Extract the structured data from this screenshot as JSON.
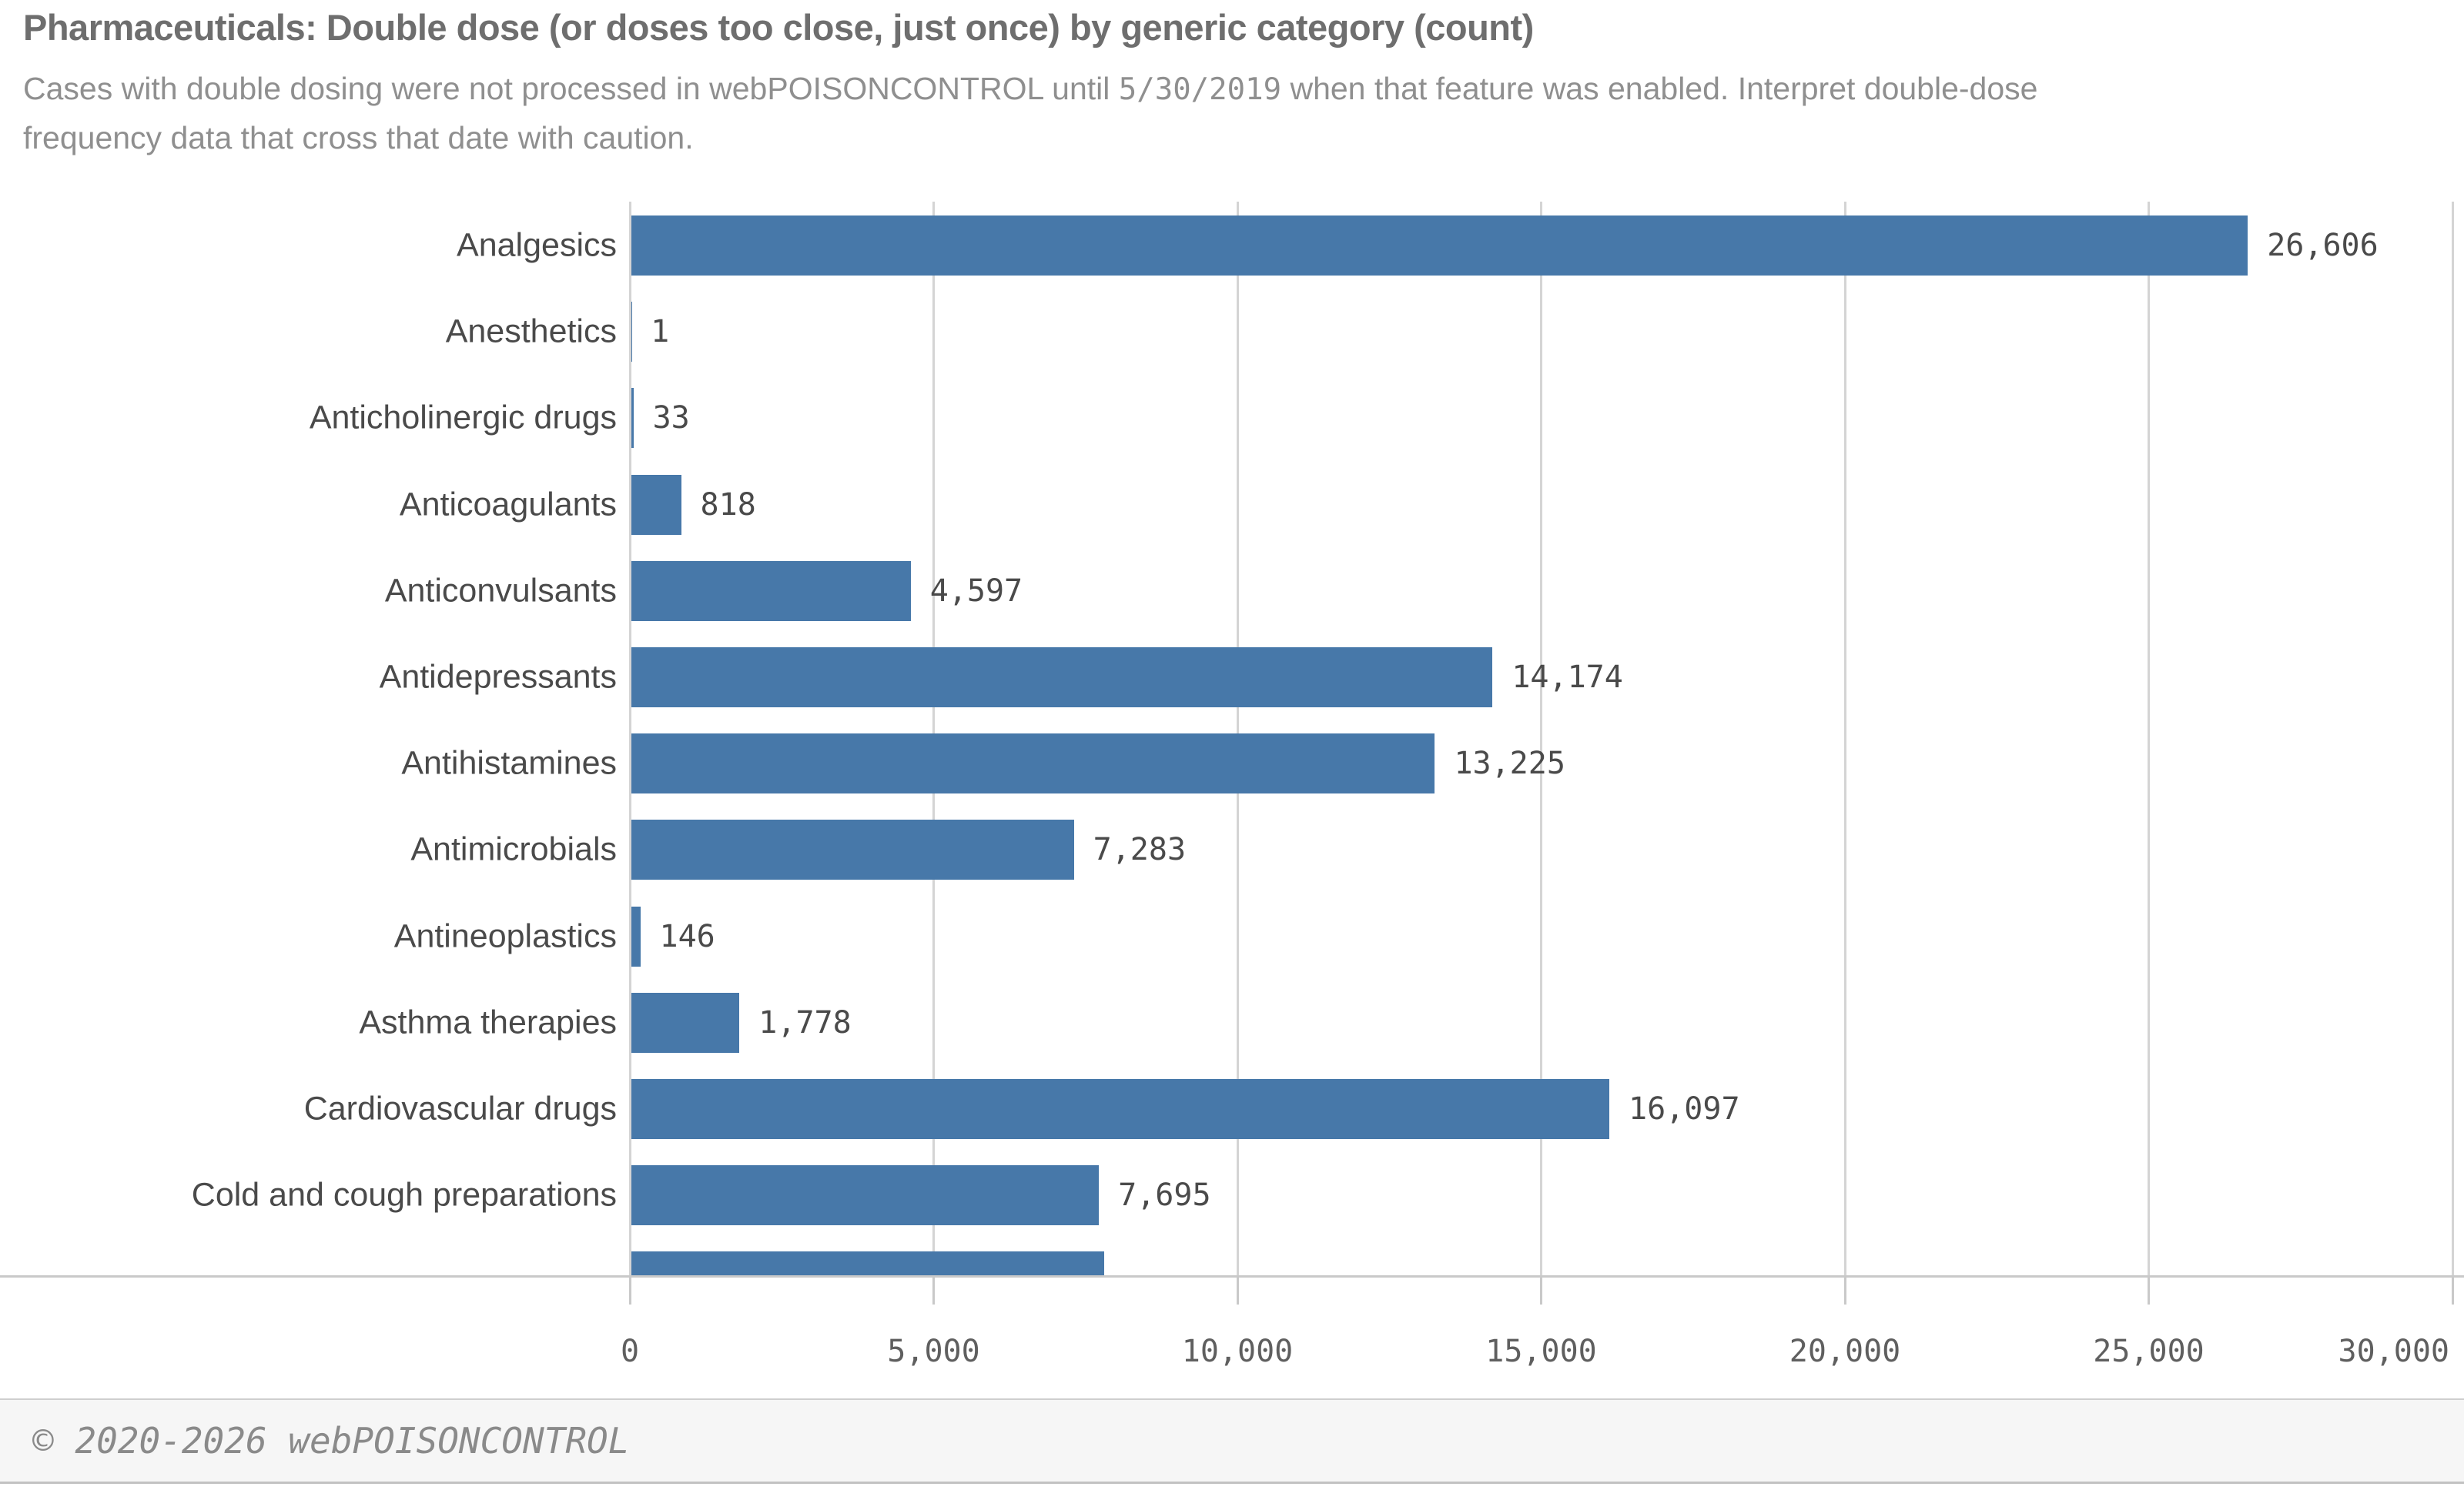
{
  "header": {
    "title": "Pharmaceuticals: Double dose (or doses too close, just once) by generic category (count)",
    "subtitle_line1_pre": "Cases with double dosing were not processed in webPOISONCONTROL until ",
    "subtitle_date": "5/30/2019",
    "subtitle_line1_post": " when that feature was enabled. Interpret double-dose",
    "subtitle_line2": "frequency data that cross that date with caution."
  },
  "chart_data": {
    "type": "bar",
    "orientation": "horizontal",
    "title": "Pharmaceuticals: Double dose (or doses too close, just once) by generic category (count)",
    "categories": [
      "Analgesics",
      "Anesthetics",
      "Anticholinergic drugs",
      "Anticoagulants",
      "Anticonvulsants",
      "Antidepressants",
      "Antihistamines",
      "Antimicrobials",
      "Antineoplastics",
      "Asthma therapies",
      "Cardiovascular drugs",
      "Cold and cough preparations",
      ""
    ],
    "values": [
      26606,
      1,
      33,
      818,
      4597,
      14174,
      13225,
      7283,
      146,
      1778,
      16097,
      7695,
      7782
    ],
    "value_labels": [
      "26,606",
      "1",
      "33",
      "818",
      "4,597",
      "14,174",
      "13,225",
      "7,283",
      "146",
      "1,778",
      "16,097",
      "7,695",
      ""
    ],
    "last_bar_clipped": true,
    "xlabel": "",
    "ylabel": "",
    "xlim": [
      0,
      30000
    ],
    "x_ticks": [
      {
        "value": 0,
        "label": "0"
      },
      {
        "value": 5000,
        "label": "5,000"
      },
      {
        "value": 10000,
        "label": "10,000"
      },
      {
        "value": 15000,
        "label": "15,000"
      },
      {
        "value": 20000,
        "label": "20,000"
      },
      {
        "value": 25000,
        "label": "25,000"
      },
      {
        "value": 30000,
        "label": "30,000"
      }
    ],
    "grid": true,
    "legend": false,
    "bar_color": "#4778a9"
  },
  "footer": {
    "copyright": "© 2020-2026 webPOISONCONTROL"
  },
  "colors": {
    "bar": "#4778a9",
    "gridline": "#d4d4d4",
    "axis_line": "#c9c9c9",
    "title_text": "#6e6e6e",
    "subtitle_text": "#8f8f8f",
    "label_text": "#4a4a4a",
    "footer_bg": "#f6f6f6"
  }
}
